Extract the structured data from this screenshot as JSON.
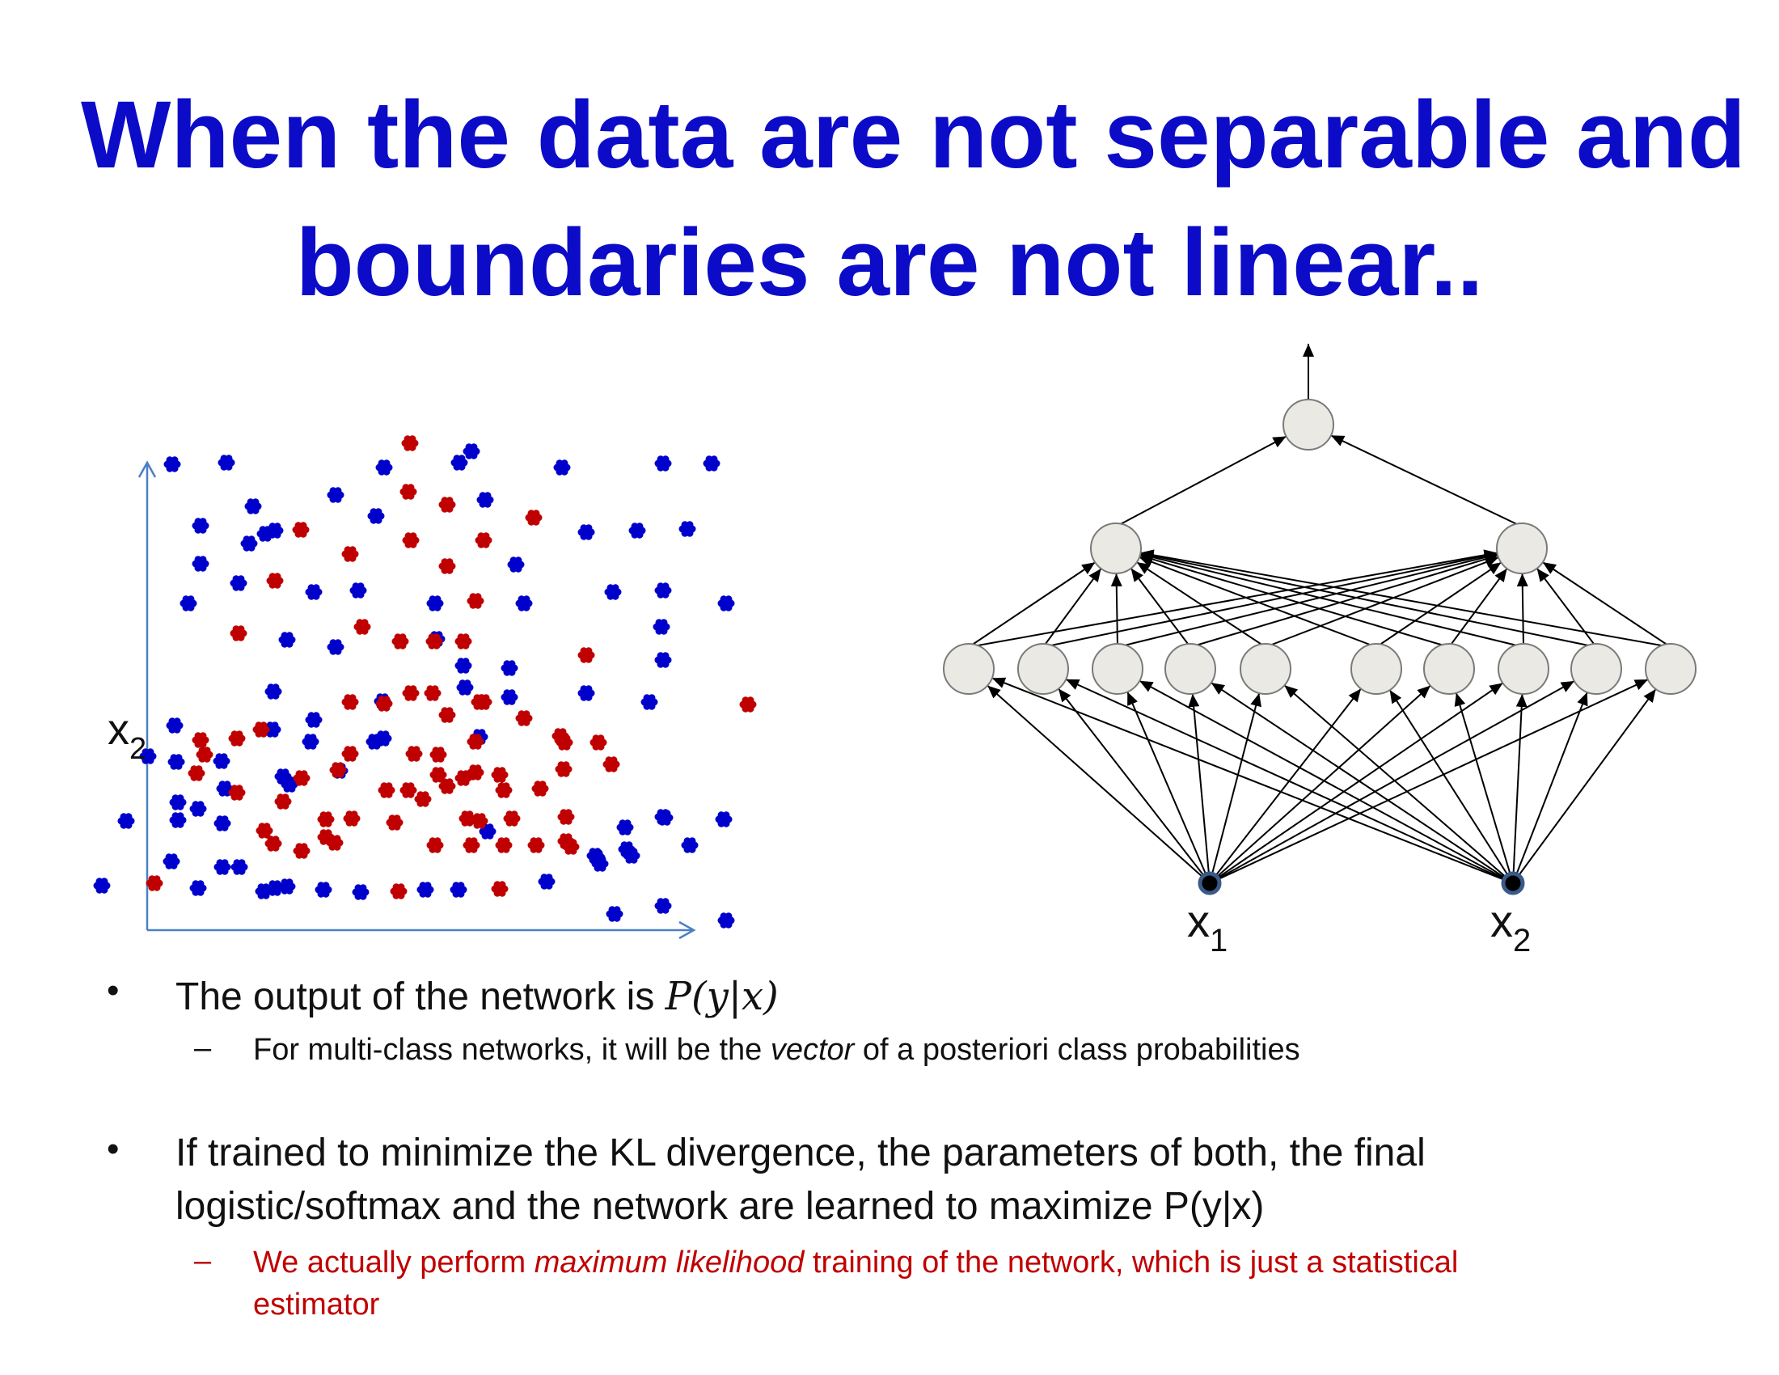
{
  "title": {
    "line1": "When the data are not separable and",
    "line2": "boundaries are not linear.."
  },
  "scatter": {
    "y_axis_label": "x",
    "y_axis_sub": "2",
    "colors": {
      "blue": "#0000cc",
      "red": "#c00000"
    },
    "blue_points": [
      [
        213,
        574
      ],
      [
        280,
        572
      ],
      [
        475,
        578
      ],
      [
        568,
        572
      ],
      [
        583,
        558
      ],
      [
        695,
        578
      ],
      [
        820,
        573
      ],
      [
        880,
        573
      ],
      [
        313,
        626
      ],
      [
        415,
        612
      ],
      [
        465,
        638
      ],
      [
        600,
        618
      ],
      [
        248,
        650
      ],
      [
        308,
        672
      ],
      [
        328,
        660
      ],
      [
        340,
        656
      ],
      [
        725,
        658
      ],
      [
        788,
        656
      ],
      [
        850,
        654
      ],
      [
        248,
        697
      ],
      [
        295,
        721
      ],
      [
        388,
        732
      ],
      [
        443,
        730
      ],
      [
        638,
        698
      ],
      [
        233,
        746
      ],
      [
        538,
        746
      ],
      [
        648,
        746
      ],
      [
        758,
        732
      ],
      [
        820,
        730
      ],
      [
        898,
        746
      ],
      [
        355,
        791
      ],
      [
        415,
        800
      ],
      [
        540,
        790
      ],
      [
        575,
        850
      ],
      [
        630,
        862
      ],
      [
        818,
        775
      ],
      [
        820,
        816
      ],
      [
        216,
        897
      ],
      [
        183,
        935
      ],
      [
        384,
        917
      ],
      [
        463,
        917
      ],
      [
        338,
        855
      ],
      [
        473,
        867
      ],
      [
        388,
        890
      ],
      [
        573,
        823
      ],
      [
        630,
        826
      ],
      [
        725,
        857
      ],
      [
        218,
        942
      ],
      [
        274,
        941
      ],
      [
        337,
        902
      ],
      [
        474,
        913
      ],
      [
        803,
        868
      ],
      [
        220,
        992
      ],
      [
        278,
        975
      ],
      [
        350,
        960
      ],
      [
        593,
        911
      ],
      [
        245,
        1000
      ],
      [
        820,
        1010
      ],
      [
        358,
        970
      ],
      [
        420,
        953
      ],
      [
        212,
        1065
      ],
      [
        156,
        1015
      ],
      [
        220,
        1014
      ],
      [
        296,
        1072
      ],
      [
        275,
        1018
      ],
      [
        340,
        1098
      ],
      [
        275,
        1072
      ],
      [
        603,
        1028
      ],
      [
        773,
        1023
      ],
      [
        822,
        1011
      ],
      [
        895,
        1013
      ],
      [
        775,
        1050
      ],
      [
        742,
        1068
      ],
      [
        853,
        1045
      ],
      [
        781,
        1058
      ],
      [
        736,
        1058
      ],
      [
        245,
        1098
      ],
      [
        326,
        1102
      ],
      [
        355,
        1096
      ],
      [
        400,
        1100
      ],
      [
        446,
        1103
      ],
      [
        526,
        1100
      ],
      [
        567,
        1100
      ],
      [
        676,
        1090
      ],
      [
        760,
        1130
      ],
      [
        820,
        1120
      ],
      [
        126,
        1095
      ],
      [
        898,
        1138
      ],
      [
        738,
        1060
      ]
    ],
    "red_points": [
      [
        507,
        548
      ],
      [
        505,
        608
      ],
      [
        553,
        624
      ],
      [
        660,
        640
      ],
      [
        372,
        655
      ],
      [
        508,
        668
      ],
      [
        598,
        668
      ],
      [
        553,
        700
      ],
      [
        340,
        718
      ],
      [
        433,
        685
      ],
      [
        588,
        743
      ],
      [
        295,
        783
      ],
      [
        448,
        775
      ],
      [
        495,
        793
      ],
      [
        537,
        793
      ],
      [
        573,
        793
      ],
      [
        725,
        810
      ],
      [
        475,
        870
      ],
      [
        508,
        857
      ],
      [
        535,
        857
      ],
      [
        433,
        868
      ],
      [
        593,
        868
      ],
      [
        925,
        871
      ],
      [
        248,
        915
      ],
      [
        293,
        913
      ],
      [
        323,
        902
      ],
      [
        553,
        884
      ],
      [
        598,
        868
      ],
      [
        648,
        888
      ],
      [
        693,
        910
      ],
      [
        253,
        933
      ],
      [
        373,
        962
      ],
      [
        433,
        932
      ],
      [
        512,
        932
      ],
      [
        542,
        933
      ],
      [
        588,
        917
      ],
      [
        243,
        956
      ],
      [
        418,
        952
      ],
      [
        542,
        958
      ],
      [
        588,
        955
      ],
      [
        618,
        958
      ],
      [
        698,
        918
      ],
      [
        740,
        918
      ],
      [
        697,
        951
      ],
      [
        756,
        945
      ],
      [
        478,
        977
      ],
      [
        505,
        977
      ],
      [
        573,
        962
      ],
      [
        623,
        977
      ],
      [
        668,
        975
      ],
      [
        293,
        980
      ],
      [
        350,
        991
      ],
      [
        523,
        988
      ],
      [
        553,
        972
      ],
      [
        403,
        1013
      ],
      [
        593,
        1015
      ],
      [
        327,
        1027
      ],
      [
        435,
        1012
      ],
      [
        488,
        1017
      ],
      [
        578,
        1012
      ],
      [
        633,
        1012
      ],
      [
        414,
        1042
      ],
      [
        700,
        1010
      ],
      [
        338,
        1043
      ],
      [
        373,
        1052
      ],
      [
        538,
        1045
      ],
      [
        583,
        1045
      ],
      [
        623,
        1045
      ],
      [
        663,
        1045
      ],
      [
        700,
        1040
      ],
      [
        191,
        1092
      ],
      [
        493,
        1102
      ],
      [
        618,
        1099
      ],
      [
        403,
        1035
      ],
      [
        706,
        1047
      ]
    ]
  },
  "network": {
    "input_labels": [
      {
        "text": "x",
        "sub": "1"
      },
      {
        "text": "x",
        "sub": "2"
      }
    ],
    "node_fill": "#ebe9e3"
  },
  "bullets": [
    {
      "text": "The output of the network is ",
      "math": "P(y|x)"
    },
    {
      "pre": "For multi-class networks, it will be the ",
      "em": "vector",
      "post": " of a posteriori class probabilities"
    },
    {
      "line1": "If trained to minimize the KL divergence, the parameters of both, the final",
      "line2": "logistic/softmax and the network are learned to maximize P(y|x)"
    },
    {
      "pre": "We actually perform ",
      "em": "maximum likelihood",
      "post": " training of the network, which is just a statistical",
      "line2": "estimator"
    }
  ],
  "bullet_marks": {
    "dot": "•",
    "dash": "–"
  }
}
